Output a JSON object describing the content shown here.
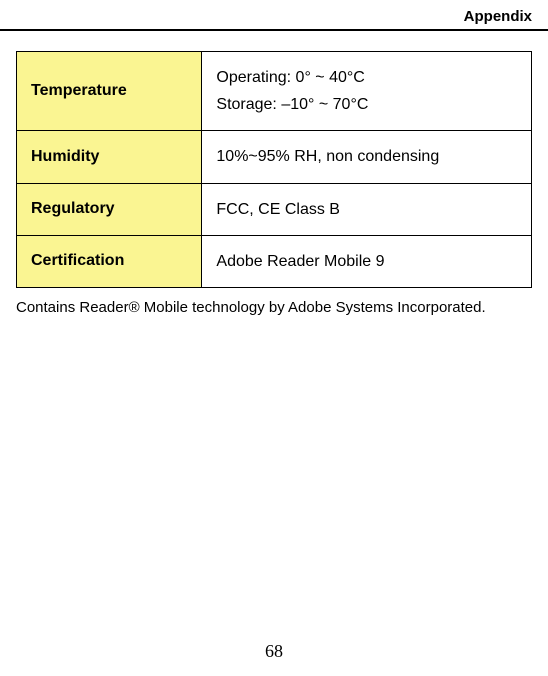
{
  "header": {
    "title": "Appendix"
  },
  "table": {
    "type": "table",
    "columns": [
      "label",
      "value"
    ],
    "label_bg": "#faf592",
    "value_bg": "#ffffff",
    "border_color": "#000000",
    "label_font_weight": "bold",
    "fontsize": 16,
    "rows": [
      {
        "label": "Temperature",
        "value_lines": [
          "Operating: 0° ~ 40°C",
          "Storage: –10° ~ 70°C"
        ]
      },
      {
        "label": "Humidity",
        "value_lines": [
          "10%~95% RH, non condensing"
        ]
      },
      {
        "label": "Regulatory",
        "value_lines": [
          "FCC, CE Class B"
        ]
      },
      {
        "label": "Certification",
        "value_lines": [
          "Adobe Reader Mobile 9"
        ]
      }
    ]
  },
  "footnote": "Contains Reader® Mobile technology by Adobe Systems Incorporated.",
  "page_number": "68"
}
